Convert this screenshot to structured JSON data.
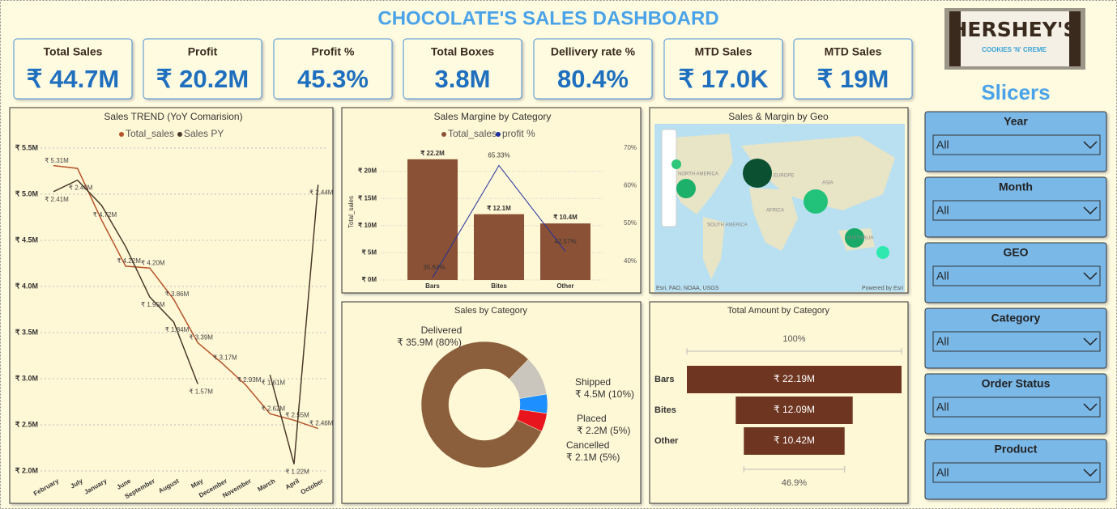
{
  "header": {
    "title": "CHOCOLATE'S SALES DASHBOARD"
  },
  "logo": {
    "brand": "HERSHEY'S",
    "flavor": "COOKIES 'N' CREME"
  },
  "kpis": [
    {
      "label": "Total Sales",
      "value": "₹ 44.7M"
    },
    {
      "label": "Profit",
      "value": "₹ 20.2M"
    },
    {
      "label": "Profit %",
      "value": "45.3%"
    },
    {
      "label": "Total Boxes",
      "value": "3.8M"
    },
    {
      "label": "Dellivery rate %",
      "value": "80.4%"
    },
    {
      "label": "MTD Sales",
      "value": "₹ 17.0K"
    },
    {
      "label": "MTD Sales",
      "value": "₹ 19M"
    }
  ],
  "slicers": {
    "title": "Slicers",
    "items": [
      {
        "label": "Year",
        "selection": "All"
      },
      {
        "label": "Month",
        "selection": "All"
      },
      {
        "label": "GEO",
        "selection": "All"
      },
      {
        "label": "Category",
        "selection": "All"
      },
      {
        "label": "Order Status",
        "selection": "All"
      },
      {
        "label": "Product",
        "selection": "All"
      }
    ]
  },
  "map": {
    "title": "Sales & Margin by Geo",
    "regions": [
      "NORTH AMERICA",
      "EUROPE",
      "ASIA",
      "AFRICA",
      "SOUTH AMERICA",
      "AUSTRALIA"
    ],
    "attribution": "Esri, FAO, NOAA, USGS",
    "powered": "Powered by Esri"
  },
  "chart_data": [
    {
      "type": "line",
      "title": "Sales TREND (YoY Comarision)",
      "legend": "top",
      "grid": true,
      "categories": [
        "February",
        "July",
        "January",
        "June",
        "September",
        "August",
        "May",
        "December",
        "November",
        "March",
        "April",
        "October"
      ],
      "ylim": [
        2,
        5.5
      ],
      "yticks": [
        {
          "value": 2,
          "label": "₹ 2.0M"
        },
        {
          "value": 2.5,
          "label": "₹ 2.5M"
        },
        {
          "value": 3,
          "label": "₹ 3.0M"
        },
        {
          "value": 3.5,
          "label": "₹ 3.5M"
        },
        {
          "value": 4,
          "label": "₹ 4.0M"
        },
        {
          "value": 4.5,
          "label": "₹ 4.5M"
        },
        {
          "value": 5,
          "label": "₹ 5.0M"
        },
        {
          "value": 5.5,
          "label": "₹ 5.5M"
        }
      ],
      "y2lim": [
        1.19,
        2.6
      ],
      "series": [
        {
          "name": "Total_sales",
          "color": "#b5532a",
          "values": [
            5.31,
            5.28,
            4.72,
            4.22,
            4.2,
            3.86,
            3.39,
            3.17,
            2.93,
            2.62,
            2.55,
            2.46
          ],
          "value_labels": [
            "₹ 5.31M",
            null,
            "₹ 4.72M",
            "₹ 4.22M",
            "₹ 4.20M",
            "₹ 3.86M",
            "₹ 3.39M",
            "₹ 3.17M",
            "₹ 2.93M",
            "₹ 2.62M",
            "₹ 2.55M",
            "₹ 2.46M"
          ]
        },
        {
          "name": "Sales PY",
          "color": "#4a3a2a",
          "axis": "y2",
          "values": [
            2.41,
            2.46,
            2.35,
            2.17,
            1.95,
            1.84,
            1.57,
            null,
            null,
            1.61,
            1.22,
            2.44
          ],
          "value_labels": [
            "₹ 2.41M",
            "₹ 2.46M",
            null,
            null,
            "₹ 1.95M",
            "₹ 1.84M",
            "₹ 1.57M",
            null,
            null,
            "₹ 1.61M",
            "₹ 1.22M",
            "₹ 2.44M"
          ]
        }
      ]
    },
    {
      "type": "combo",
      "title": "Sales Margine by Category",
      "legend": "top",
      "ylabel": "Total_sales",
      "categories": [
        "Bars",
        "Bites",
        "Other"
      ],
      "ylim": [
        0,
        25
      ],
      "yticks": [
        {
          "value": 0,
          "label": "₹ 0M"
        },
        {
          "value": 5,
          "label": "₹ 5M"
        },
        {
          "value": 10,
          "label": "₹ 10M"
        },
        {
          "value": 15,
          "label": "₹ 15M"
        },
        {
          "value": 20,
          "label": "₹ 20M"
        }
      ],
      "y2lim": [
        35,
        71
      ],
      "y2ticks": [
        {
          "value": 40,
          "label": "40%"
        },
        {
          "value": 50,
          "label": "50%"
        },
        {
          "value": 60,
          "label": "60%"
        },
        {
          "value": 70,
          "label": "70%"
        }
      ],
      "series": [
        {
          "name": "Total_sales",
          "color": "#8b5136",
          "values": [
            22.2,
            12.1,
            10.4
          ],
          "value_labels": [
            "₹ 22.2M",
            "₹ 12.1M",
            "₹ 10.4M"
          ]
        },
        {
          "name": "profit %",
          "color": "#1f2fa0",
          "axis": "y2",
          "values": [
            35.64,
            65.33,
            42.57
          ],
          "value_labels": [
            "35.64%",
            "65.33%",
            "42.57%"
          ]
        }
      ]
    },
    {
      "type": "donut",
      "title": "Sales by Category",
      "categories": [
        "Delivered",
        "Shipped",
        "Placed",
        "Cancelled"
      ],
      "values": [
        35.9,
        4.5,
        2.2,
        2.1
      ],
      "value_labels": [
        "₹ 35.9M (80%)",
        "₹ 4.5M (10%)",
        "₹ 2.2M (5%)",
        "₹ 2.1M (5%)"
      ],
      "colors": [
        "#8b5e3c",
        "#cbc6bd",
        "#1e8fff",
        "#e8141e"
      ]
    },
    {
      "type": "funnel",
      "title": "Total Amount by Category",
      "categories": [
        "Bars",
        "Bites",
        "Other"
      ],
      "values": [
        22.19,
        12.09,
        10.42
      ],
      "value_labels": [
        "₹ 22.19M",
        "₹ 12.09M",
        "₹ 10.42M"
      ],
      "color": "#6e3520",
      "top_label": "100%",
      "bottom_label": "46.9%"
    }
  ]
}
